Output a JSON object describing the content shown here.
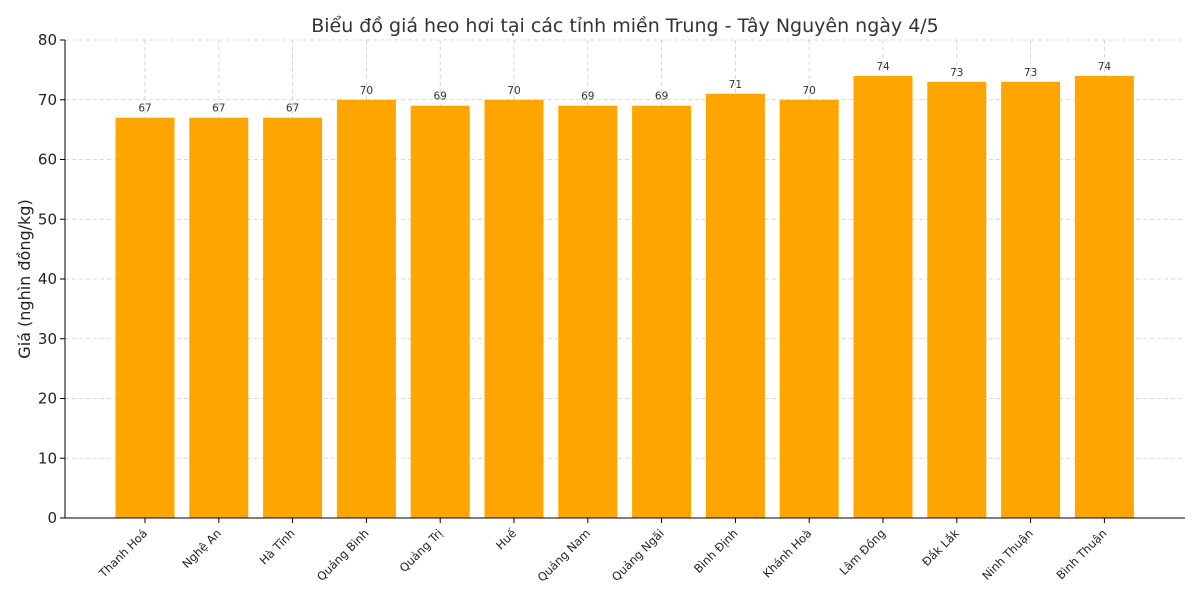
{
  "chart_data": {
    "type": "bar",
    "title": "Biểu đồ giá heo hơi tại các tỉnh miền Trung - Tây Nguyên ngày 4/5",
    "xlabel": "",
    "ylabel": "Giá (nghìn đồng/kg)",
    "ylim": [
      0,
      80
    ],
    "yticks": [
      0,
      10,
      20,
      30,
      40,
      50,
      60,
      70,
      80
    ],
    "grid": true,
    "bar_color": "#FFA500",
    "categories": [
      "Thanh Hoá",
      "Nghệ An",
      "Hà Tĩnh",
      "Quảng Bình",
      "Quảng Trị",
      "Huế",
      "Quảng Nam",
      "Quảng Ngãi",
      "Bình Định",
      "Khánh Hoà",
      "Lâm Đồng",
      "Đắk Lắk",
      "Ninh Thuận",
      "Bình Thuận"
    ],
    "values": [
      67,
      67,
      67,
      70,
      69,
      70,
      69,
      69,
      71,
      70,
      74,
      73,
      73,
      74
    ]
  }
}
